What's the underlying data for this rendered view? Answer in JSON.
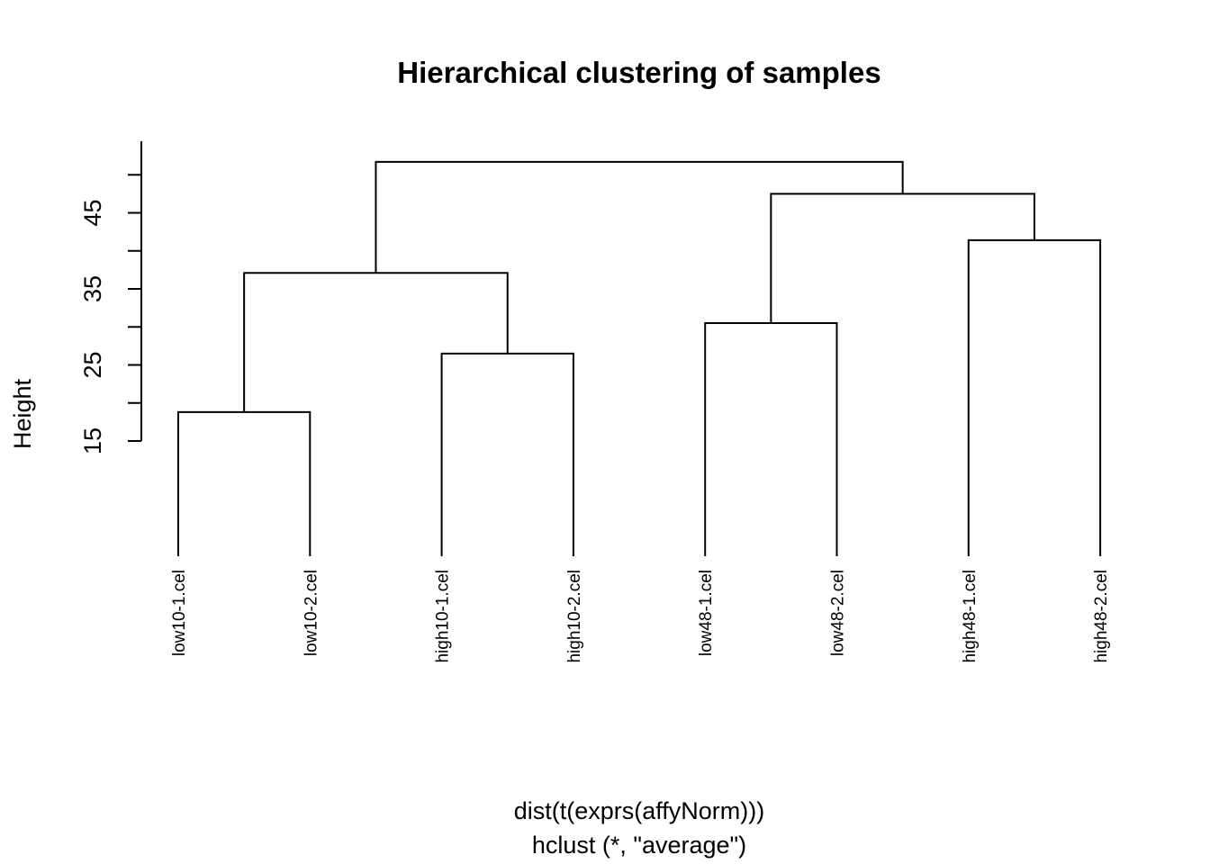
{
  "chart_data": {
    "type": "dendrogram",
    "title": "Hierarchical clustering of samples",
    "ylabel": "Height",
    "xlabel": "dist(t(exprs(affyNorm)))",
    "sub": "hclust (*, \"average\")",
    "ylim": [
      15,
      53
    ],
    "yticks": [
      15,
      25,
      35,
      45
    ],
    "minor_ticks": [
      20,
      30,
      40,
      50
    ],
    "leaves": [
      "low10-1.cel",
      "low10-2.cel",
      "high10-1.cel",
      "high10-2.cel",
      "low48-1.cel",
      "low48-2.cel",
      "high48-1.cel",
      "high48-2.cel"
    ],
    "merges": [
      {
        "left": "low10-1.cel",
        "right": "low10-2.cel",
        "height": 18.8
      },
      {
        "left": "high10-1.cel",
        "right": "high10-2.cel",
        "height": 26.5
      },
      {
        "left": "low48-1.cel",
        "right": "low48-2.cel",
        "height": 30.5
      },
      {
        "left": "high48-1.cel",
        "right": "high48-2.cel",
        "height": 41.4
      },
      {
        "left": "m1",
        "right": "m2",
        "height": 37.1
      },
      {
        "left": "m3",
        "right": "m4",
        "height": 47.5
      },
      {
        "left": "m5",
        "right": "m6",
        "height": 51.7
      }
    ]
  }
}
